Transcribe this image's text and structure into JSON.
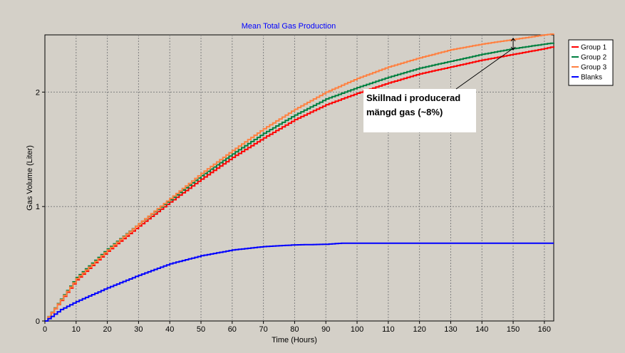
{
  "chart_data": {
    "type": "line",
    "title": "Mean Total Gas Production",
    "xlabel": "Time (Hours)",
    "ylabel": "Gas Volume (Liter)",
    "xlim": [
      0,
      163
    ],
    "ylim": [
      0,
      2.5
    ],
    "x_ticks": [
      0,
      10,
      20,
      30,
      40,
      50,
      60,
      70,
      80,
      90,
      100,
      110,
      120,
      130,
      140,
      150,
      160
    ],
    "y_ticks": [
      0,
      1,
      2
    ],
    "grid": true,
    "legend_position": "right",
    "series": [
      {
        "name": "Group 1",
        "color": "#ff0000",
        "x": [
          0,
          10,
          20,
          30,
          40,
          50,
          60,
          70,
          80,
          90,
          100,
          110,
          120,
          130,
          140,
          150,
          160,
          163
        ],
        "y": [
          0,
          0.36,
          0.61,
          0.83,
          1.04,
          1.24,
          1.43,
          1.6,
          1.76,
          1.89,
          1.99,
          2.08,
          2.16,
          2.22,
          2.28,
          2.33,
          2.38,
          2.4
        ]
      },
      {
        "name": "Group 2",
        "color": "#008040",
        "x": [
          0,
          10,
          20,
          30,
          40,
          50,
          60,
          70,
          80,
          90,
          100,
          110,
          120,
          130,
          140,
          150,
          160,
          163
        ],
        "y": [
          0,
          0.38,
          0.63,
          0.85,
          1.06,
          1.27,
          1.46,
          1.64,
          1.8,
          1.94,
          2.04,
          2.13,
          2.21,
          2.27,
          2.33,
          2.38,
          2.42,
          2.43
        ]
      },
      {
        "name": "Group 3",
        "color": "#ff8040",
        "x": [
          0,
          10,
          20,
          30,
          40,
          50,
          60,
          70,
          80,
          90,
          100,
          110,
          120,
          130,
          140,
          150,
          160,
          163
        ],
        "y": [
          0,
          0.37,
          0.62,
          0.85,
          1.07,
          1.29,
          1.49,
          1.68,
          1.85,
          2.0,
          2.12,
          2.22,
          2.3,
          2.37,
          2.42,
          2.46,
          2.5,
          2.51
        ]
      },
      {
        "name": "Blanks",
        "color": "#0000ff",
        "x": [
          0,
          5,
          10,
          20,
          30,
          40,
          50,
          60,
          70,
          80,
          90,
          95,
          100,
          110,
          120,
          130,
          140,
          150,
          160,
          163
        ],
        "y": [
          0,
          0.1,
          0.17,
          0.29,
          0.4,
          0.5,
          0.57,
          0.62,
          0.65,
          0.665,
          0.67,
          0.68,
          0.68,
          0.68,
          0.68,
          0.68,
          0.68,
          0.68,
          0.68,
          0.68
        ]
      }
    ],
    "annotation": {
      "lines": [
        "Skillnad i producerad",
        "mängd gas (~8%)"
      ],
      "arrow_x": 150,
      "arrow_y_from": 2.37,
      "arrow_y_to": 2.47
    }
  }
}
